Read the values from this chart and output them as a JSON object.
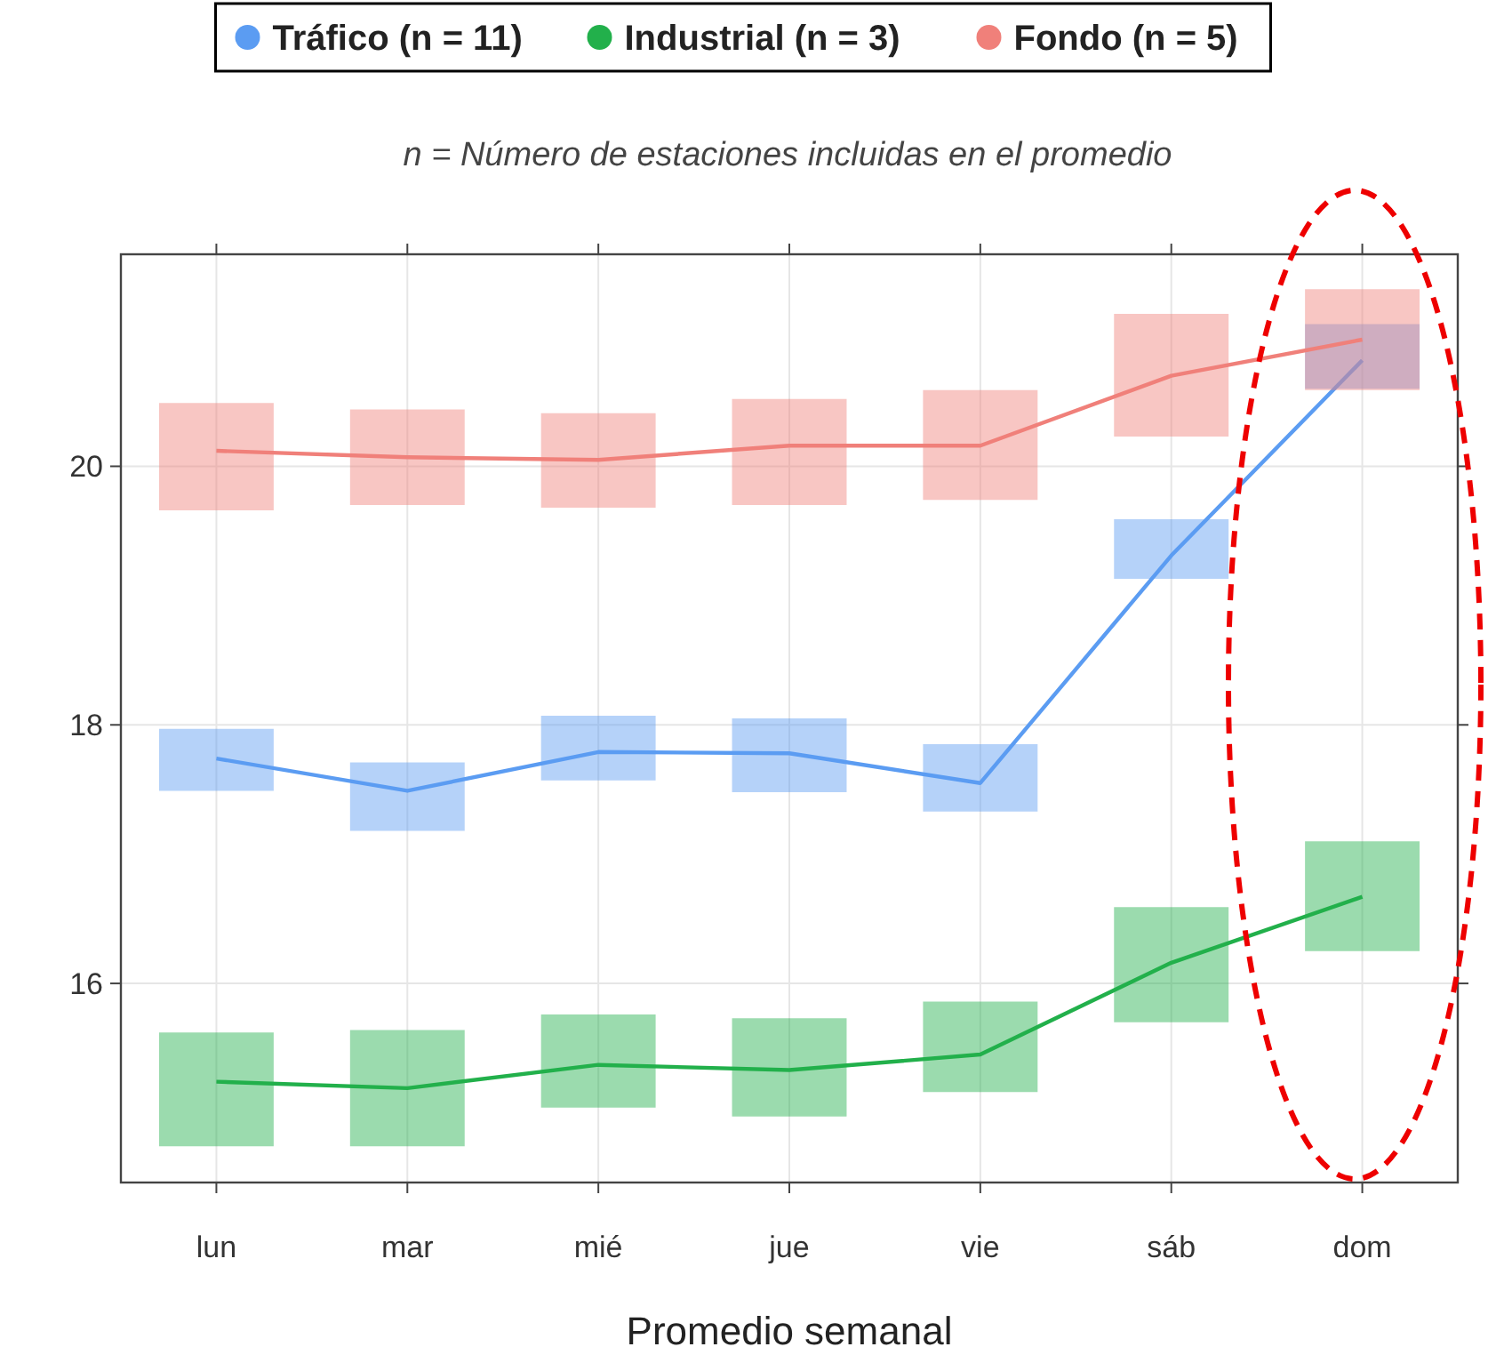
{
  "chart_data": {
    "type": "line",
    "subtitle": "n = Número de estaciones incluidas en el promedio",
    "xlabel": "Promedio semanal",
    "categories": [
      "lun",
      "mar",
      "mié",
      "jue",
      "vie",
      "sáb",
      "dom"
    ],
    "series": [
      {
        "name": "Tráfico (n = 11)",
        "color": "#5b9cf2",
        "values": [
          17.74,
          17.49,
          17.79,
          17.78,
          17.55,
          19.31,
          20.82
        ],
        "errors": [
          [
            17.49,
            17.97
          ],
          [
            17.18,
            17.71
          ],
          [
            17.57,
            18.07
          ],
          [
            17.48,
            18.05
          ],
          [
            17.33,
            17.85
          ],
          [
            19.13,
            19.59
          ],
          [
            20.6,
            21.1
          ]
        ]
      },
      {
        "name": "Industrial (n = 3)",
        "color": "#22b04b",
        "values": [
          15.24,
          15.19,
          15.37,
          15.33,
          15.45,
          16.16,
          16.67
        ],
        "errors": [
          [
            14.74,
            15.62
          ],
          [
            14.74,
            15.64
          ],
          [
            15.04,
            15.76
          ],
          [
            14.97,
            15.73
          ],
          [
            15.16,
            15.86
          ],
          [
            15.7,
            16.59
          ],
          [
            16.25,
            17.1
          ]
        ]
      },
      {
        "name": "Fondo (n = 5)",
        "color": "#f0807a",
        "values": [
          20.12,
          20.07,
          20.05,
          20.16,
          20.16,
          20.7,
          20.98
        ],
        "errors": [
          [
            19.66,
            20.49
          ],
          [
            19.7,
            20.44
          ],
          [
            19.68,
            20.41
          ],
          [
            19.7,
            20.52
          ],
          [
            19.74,
            20.59
          ],
          [
            20.23,
            21.18
          ],
          [
            20.59,
            21.37
          ]
        ]
      }
    ],
    "ylim": [
      14.46,
      21.64
    ],
    "yticks": [
      16,
      18,
      20
    ],
    "grid": true,
    "legend": "top",
    "marker": "none",
    "line_style": "solid"
  }
}
